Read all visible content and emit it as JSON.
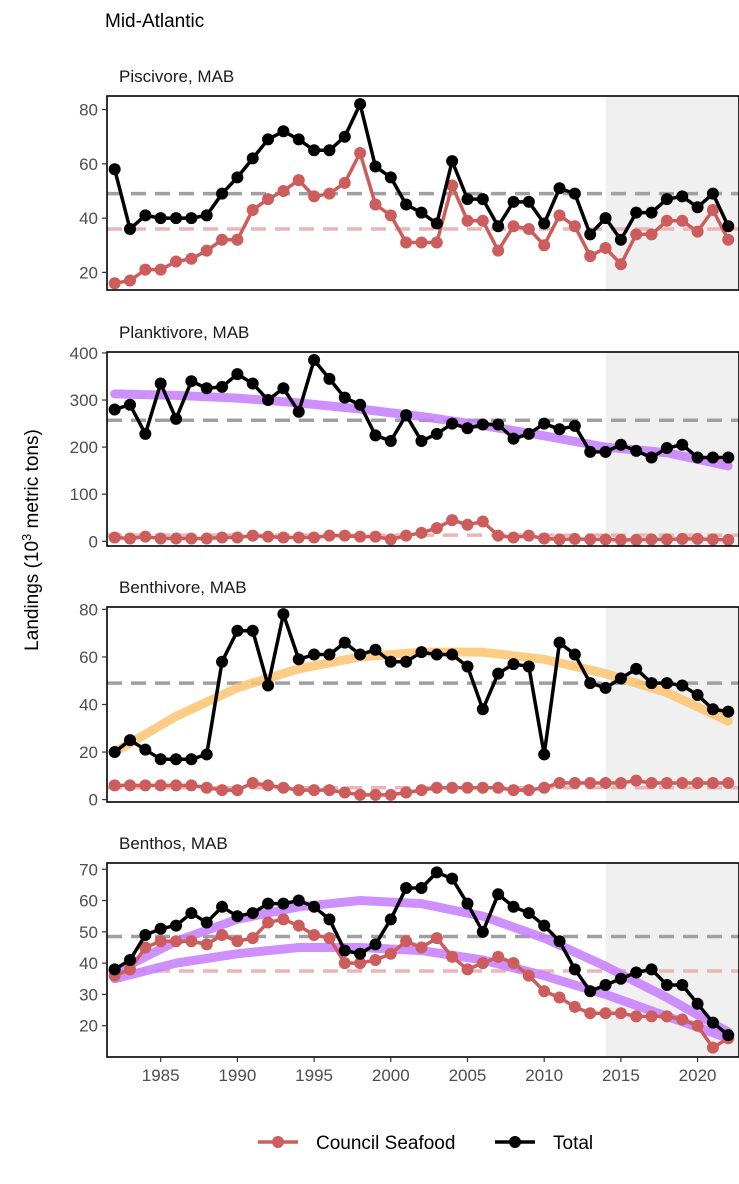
{
  "page": {
    "title": "Mid-Atlantic",
    "ylabel_prefix": "Landings (10",
    "ylabel_sup": "3",
    "ylabel_suffix": " metric tons)"
  },
  "colors": {
    "total": "#000000",
    "council": "#CD5C5C",
    "council_mean": "#EBB5B5",
    "total_mean": "#A0A0A0",
    "trend_purple": "#C77CFF",
    "trend_orange": "#FDC471",
    "shade": "#F0F0F0"
  },
  "legend": {
    "items": [
      {
        "label": "Council Seafood",
        "key": "council"
      },
      {
        "label": "Total",
        "key": "total"
      }
    ]
  },
  "chart_data": [
    {
      "type": "line",
      "title": "Piscivore, MAB",
      "x": [
        1982,
        1983,
        1984,
        1985,
        1986,
        1987,
        1988,
        1989,
        1990,
        1991,
        1992,
        1993,
        1994,
        1995,
        1996,
        1997,
        1998,
        1999,
        2000,
        2001,
        2002,
        2003,
        2004,
        2005,
        2006,
        2007,
        2008,
        2009,
        2010,
        2011,
        2012,
        2013,
        2014,
        2015,
        2016,
        2017,
        2018,
        2019,
        2020,
        2021,
        2022
      ],
      "xlim": [
        1981.5,
        2022.7
      ],
      "ylim": [
        13.5,
        85
      ],
      "yticks": [
        20,
        40,
        60,
        80
      ],
      "shade_start": 2014,
      "series": [
        {
          "name": "Council Seafood",
          "key": "council",
          "mean": 36,
          "values": [
            16,
            17,
            21,
            21,
            24,
            25,
            28,
            32,
            32,
            43,
            47,
            50,
            54,
            48,
            49,
            53,
            64,
            45,
            41,
            31,
            31,
            31,
            52,
            39,
            39,
            28,
            37,
            36,
            30,
            41,
            37,
            26,
            29,
            23,
            34,
            34,
            39,
            39,
            35,
            43,
            32
          ]
        },
        {
          "name": "Total",
          "key": "total",
          "mean": 49,
          "values": [
            58,
            36,
            41,
            40,
            40,
            40,
            41,
            49,
            55,
            62,
            69,
            72,
            69,
            65,
            65,
            70,
            82,
            59,
            55,
            45,
            42,
            38,
            61,
            47,
            47,
            37,
            46,
            46,
            38,
            51,
            49,
            34,
            40,
            32,
            42,
            42,
            47,
            48,
            44,
            49,
            37
          ]
        }
      ],
      "trends": []
    },
    {
      "type": "line",
      "title": "Planktivore, MAB",
      "x": [
        1982,
        1983,
        1984,
        1985,
        1986,
        1987,
        1988,
        1989,
        1990,
        1991,
        1992,
        1993,
        1994,
        1995,
        1996,
        1997,
        1998,
        1999,
        2000,
        2001,
        2002,
        2003,
        2004,
        2005,
        2006,
        2007,
        2008,
        2009,
        2010,
        2011,
        2012,
        2013,
        2014,
        2015,
        2016,
        2017,
        2018,
        2019,
        2020,
        2021,
        2022
      ],
      "xlim": [
        1981.5,
        2022.7
      ],
      "ylim": [
        -10,
        402
      ],
      "yticks": [
        0,
        100,
        200,
        300,
        400
      ],
      "shade_start": 2014,
      "series": [
        {
          "name": "Council Seafood",
          "key": "council",
          "mean": 13,
          "values": [
            8,
            6,
            10,
            6,
            6,
            6,
            6,
            8,
            8,
            12,
            10,
            8,
            8,
            8,
            12,
            12,
            10,
            10,
            4,
            12,
            18,
            28,
            45,
            35,
            42,
            12,
            8,
            12,
            6,
            4,
            5,
            4,
            4,
            3,
            3,
            4,
            4,
            5,
            5,
            4,
            3
          ]
        },
        {
          "name": "Total",
          "key": "total",
          "mean": 257,
          "values": [
            280,
            290,
            228,
            335,
            260,
            340,
            325,
            328,
            355,
            335,
            300,
            325,
            275,
            385,
            345,
            305,
            290,
            225,
            213,
            268,
            213,
            228,
            250,
            240,
            248,
            248,
            218,
            228,
            250,
            238,
            245,
            190,
            190,
            205,
            192,
            178,
            198,
            205,
            178,
            178,
            178
          ]
        }
      ],
      "trends": [
        {
          "key": "trend_purple",
          "x": [
            1982,
            1986,
            1990,
            1994,
            1998,
            2002,
            2006,
            2010,
            2014,
            2018,
            2022
          ],
          "values": [
            313,
            310,
            304,
            294,
            281,
            265,
            246,
            224,
            200,
            188,
            160
          ]
        }
      ]
    },
    {
      "type": "line",
      "title": "Benthivore, MAB",
      "x": [
        1982,
        1983,
        1984,
        1985,
        1986,
        1987,
        1988,
        1989,
        1990,
        1991,
        1992,
        1993,
        1994,
        1995,
        1996,
        1997,
        1998,
        1999,
        2000,
        2001,
        2002,
        2003,
        2004,
        2005,
        2006,
        2007,
        2008,
        2009,
        2010,
        2011,
        2012,
        2013,
        2014,
        2015,
        2016,
        2017,
        2018,
        2019,
        2020,
        2021,
        2022
      ],
      "xlim": [
        1981.5,
        2022.7
      ],
      "ylim": [
        -1,
        81
      ],
      "yticks": [
        0,
        20,
        40,
        60,
        80
      ],
      "shade_start": 2014,
      "series": [
        {
          "name": "Council Seafood",
          "key": "council",
          "mean": 5,
          "values": [
            6,
            6,
            6,
            6,
            6,
            6,
            5,
            4,
            4,
            7,
            6,
            5,
            4,
            4,
            4,
            3,
            2,
            2,
            2,
            3,
            4,
            5,
            5,
            5,
            5,
            5,
            4,
            4,
            5,
            7,
            7,
            7,
            7,
            7,
            8,
            7,
            7,
            7,
            7,
            7,
            7
          ]
        },
        {
          "name": "Total",
          "key": "total",
          "mean": 49,
          "values": [
            20,
            25,
            21,
            17,
            17,
            17,
            19,
            58,
            71,
            71,
            48,
            78,
            59,
            61,
            61,
            66,
            61,
            63,
            58,
            58,
            62,
            61,
            61,
            56,
            38,
            53,
            57,
            56,
            19,
            66,
            61,
            49,
            47,
            51,
            55,
            49,
            49,
            48,
            44,
            38,
            37
          ]
        }
      ],
      "trends": [
        {
          "key": "trend_orange",
          "x": [
            1982,
            1986,
            1990,
            1994,
            1998,
            2002,
            2006,
            2010,
            2014,
            2018,
            2022
          ],
          "values": [
            20,
            35,
            47,
            55,
            60,
            62,
            62,
            59,
            53,
            45,
            33
          ]
        }
      ]
    },
    {
      "type": "line",
      "title": "Benthos, MAB",
      "x": [
        1982,
        1983,
        1984,
        1985,
        1986,
        1987,
        1988,
        1989,
        1990,
        1991,
        1992,
        1993,
        1994,
        1995,
        1996,
        1997,
        1998,
        1999,
        2000,
        2001,
        2002,
        2003,
        2004,
        2005,
        2006,
        2007,
        2008,
        2009,
        2010,
        2011,
        2012,
        2013,
        2014,
        2015,
        2016,
        2017,
        2018,
        2019,
        2020,
        2021,
        2022
      ],
      "xlim": [
        1981.5,
        2022.7
      ],
      "ylim": [
        10,
        72
      ],
      "yticks": [
        20,
        30,
        40,
        50,
        60,
        70
      ],
      "xticks": [
        1985,
        1990,
        1995,
        2000,
        2005,
        2010,
        2015,
        2020
      ],
      "shade_start": 2014,
      "series": [
        {
          "name": "Council Seafood",
          "key": "council",
          "mean": 37.5,
          "values": [
            36,
            38,
            45,
            47,
            47,
            47,
            46,
            49,
            47,
            48,
            53,
            54,
            52,
            49,
            48,
            40,
            40,
            41,
            43,
            47,
            45,
            48,
            42,
            38,
            40,
            42,
            40,
            36,
            31,
            29,
            26,
            24,
            24,
            24,
            23,
            23,
            23,
            22,
            20,
            13,
            16
          ]
        },
        {
          "name": "Total",
          "key": "total",
          "mean": 48.5,
          "values": [
            38,
            41,
            49,
            51,
            52,
            56,
            53,
            58,
            55,
            56,
            59,
            59,
            60,
            58,
            54,
            44,
            43,
            46,
            54,
            64,
            64,
            69,
            67,
            59,
            50,
            62,
            58,
            56,
            52,
            47,
            38,
            31,
            33,
            35,
            37,
            38,
            33,
            33,
            27,
            21,
            17
          ]
        }
      ],
      "trends": [
        {
          "key": "trend_purple",
          "x": [
            1982,
            1986,
            1990,
            1994,
            1998,
            2002,
            2006,
            2010,
            2014,
            2018,
            2022
          ],
          "values": [
            37,
            47,
            54,
            58,
            60,
            59,
            55,
            48,
            39,
            29,
            18
          ]
        },
        {
          "key": "trend_purple",
          "x": [
            1982,
            1986,
            1990,
            1994,
            1998,
            2002,
            2006,
            2010,
            2014,
            2018,
            2022
          ],
          "values": [
            35,
            40,
            43,
            45,
            45,
            44,
            41,
            36,
            30,
            23,
            16
          ]
        }
      ]
    }
  ]
}
